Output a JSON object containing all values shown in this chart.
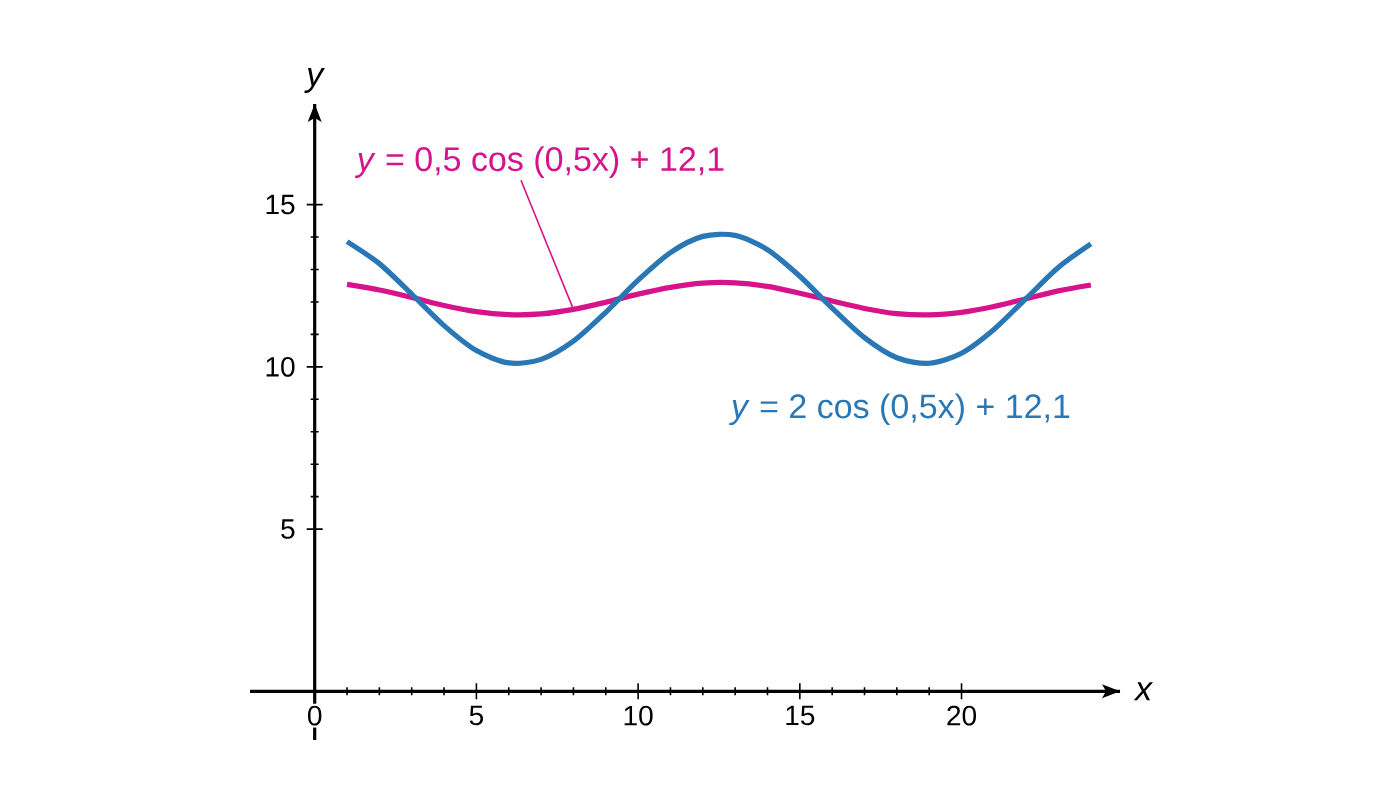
{
  "chart_data": {
    "type": "line",
    "xlabel": "x",
    "ylabel": "y",
    "xlim": [
      -2,
      24.9
    ],
    "ylim": [
      -1.5,
      18.1
    ],
    "xticks": [
      0,
      5,
      10,
      15,
      20
    ],
    "yticks": [
      5,
      10,
      15
    ],
    "grid": false,
    "marker": "none",
    "line_style": "solid",
    "x": [
      1,
      2,
      3,
      4,
      5,
      6,
      7,
      8,
      9,
      10,
      11,
      12,
      13,
      14,
      15,
      16,
      17,
      18,
      19,
      20,
      21,
      22,
      23,
      24
    ],
    "series": [
      {
        "name": "*y* = 0,5 cos (0,5x) + 12,1",
        "color": "#d6138a",
        "values": [
          12.54,
          12.37,
          12.14,
          11.89,
          11.7,
          11.61,
          11.63,
          11.77,
          11.99,
          12.24,
          12.45,
          12.58,
          12.59,
          12.48,
          12.27,
          12.03,
          11.8,
          11.64,
          11.6,
          11.68,
          11.86,
          12.1,
          12.34,
          12.52
        ]
      },
      {
        "name": "*y* = 2 cos (0,5x) + 12,1",
        "color": "#2a77b5",
        "values": [
          13.86,
          13.18,
          12.24,
          11.27,
          10.5,
          10.12,
          10.23,
          10.79,
          11.68,
          12.67,
          13.52,
          14.02,
          14.05,
          13.61,
          12.79,
          11.81,
          10.9,
          10.28,
          10.11,
          10.42,
          11.15,
          12.11,
          13.07,
          13.79
        ]
      }
    ]
  }
}
